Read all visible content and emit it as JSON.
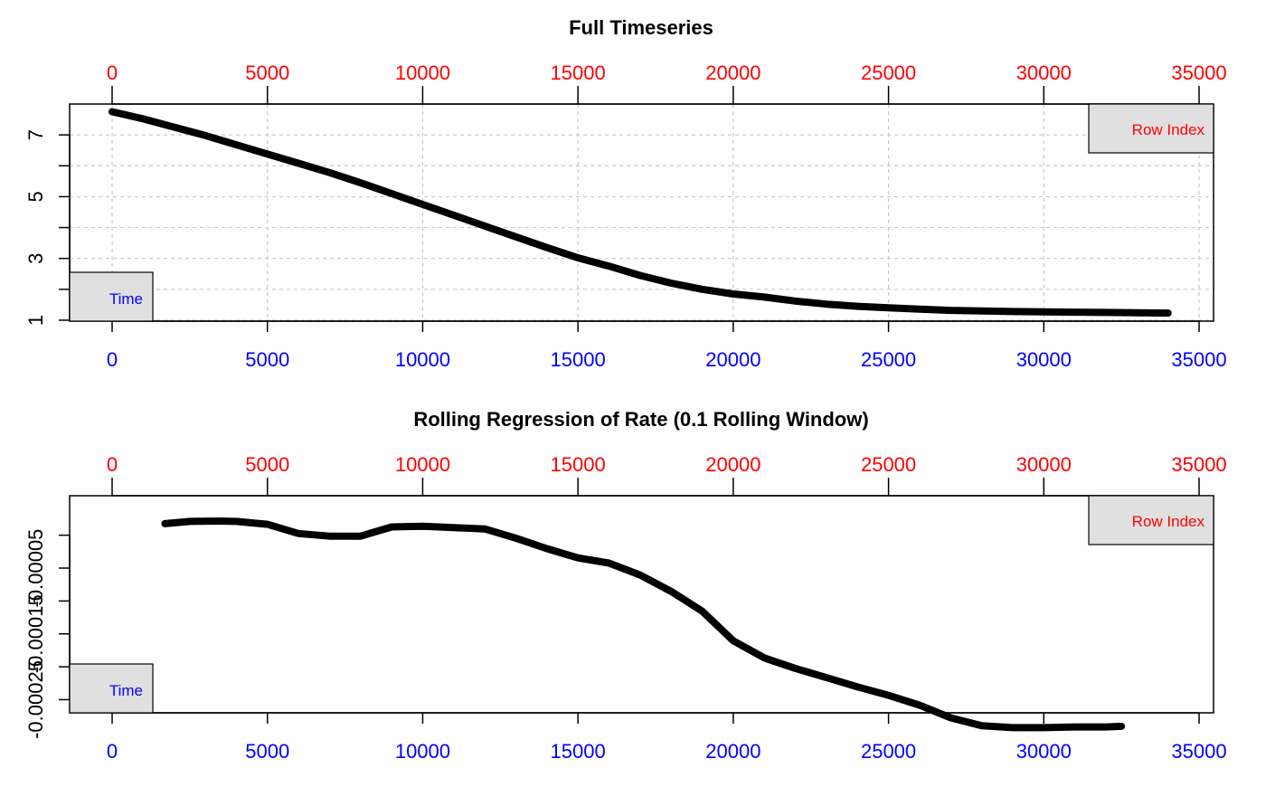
{
  "colors": {
    "series": "#000000",
    "top_axis": "#ff0000",
    "bottom_axis": "#0000ff",
    "left_axis": "#000000",
    "grid": "#c8c8c8",
    "legend_fill": "#e0e0e0"
  },
  "chart_data": [
    {
      "type": "line",
      "title": "Full Timeseries",
      "top_axis": {
        "label": "Row Index",
        "ticks": [
          "0",
          "5000",
          "10000",
          "15000",
          "20000",
          "25000",
          "30000",
          "35000"
        ],
        "range": [
          0,
          35000
        ]
      },
      "bottom_axis": {
        "label": "Time",
        "ticks": [
          "0",
          "5000",
          "10000",
          "15000",
          "20000",
          "25000",
          "30000",
          "35000"
        ],
        "range": [
          0,
          35000
        ]
      },
      "y_axis": {
        "ticks": [
          1,
          2,
          3,
          4,
          5,
          6,
          7
        ],
        "tick_labels": [
          "1",
          "",
          "3",
          "",
          "5",
          "",
          "7"
        ],
        "ylim": [
          0.97,
          8.0
        ]
      },
      "grid": true,
      "legend_top_right": "Row Index",
      "legend_bottom_left": "Time",
      "series": [
        {
          "x": [
            0,
            1000,
            2000,
            3000,
            4000,
            5000,
            6000,
            7000,
            8000,
            9000,
            10000,
            11000,
            12000,
            13000,
            14000,
            15000,
            16000,
            17000,
            18000,
            19000,
            20000,
            21000,
            22000,
            23000,
            24000,
            25000,
            26000,
            27000,
            28000,
            29000,
            30000,
            31000,
            32000,
            33000,
            34000
          ],
          "y": [
            7.75,
            7.52,
            7.25,
            6.98,
            6.68,
            6.38,
            6.08,
            5.78,
            5.45,
            5.1,
            4.75,
            4.4,
            4.05,
            3.7,
            3.35,
            3.02,
            2.75,
            2.45,
            2.2,
            2.0,
            1.85,
            1.75,
            1.62,
            1.52,
            1.45,
            1.4,
            1.36,
            1.32,
            1.3,
            1.28,
            1.27,
            1.26,
            1.25,
            1.24,
            1.23
          ]
        }
      ]
    },
    {
      "type": "line",
      "title": "Rolling Regression of Rate (0.1 Rolling Window)",
      "top_axis": {
        "label": "Row Index",
        "ticks": [
          "0",
          "5000",
          "10000",
          "15000",
          "20000",
          "25000",
          "30000",
          "35000"
        ],
        "range": [
          0,
          35000
        ]
      },
      "bottom_axis": {
        "label": "Time",
        "ticks": [
          "0",
          "5000",
          "10000",
          "15000",
          "20000",
          "25000",
          "30000",
          "35000"
        ],
        "range": [
          0,
          35000
        ]
      },
      "y_axis": {
        "ticks": [
          -0.00025,
          -0.0002,
          -0.00015,
          -0.0001,
          -5e-05,
          0.0
        ],
        "tick_labels": [
          "-0.00025",
          "",
          "-0.00015",
          "",
          "-0.00005",
          ""
        ],
        "ylim": [
          -0.00027,
          6e-05
        ]
      },
      "grid": false,
      "legend_top_right": "Row Index",
      "legend_bottom_left": "Time",
      "series": [
        {
          "x": [
            1700,
            2500,
            3500,
            4000,
            5000,
            6000,
            7000,
            8000,
            9000,
            10000,
            11000,
            12000,
            13000,
            14000,
            15000,
            16000,
            17000,
            18000,
            19000,
            20000,
            21000,
            22000,
            23000,
            24000,
            25000,
            26000,
            27000,
            28000,
            29000,
            30000,
            31000,
            32000,
            32500
          ],
          "y": [
            1.75e-05,
            2.1e-05,
            2.15e-05,
            2.1e-05,
            1.65e-05,
            2.5e-06,
            -1.5e-06,
            -1.5e-06,
            1.25e-05,
            1.35e-05,
            1.15e-05,
            9.5e-06,
            -4.5e-06,
            -2.05e-05,
            -3.45e-05,
            -4.25e-05,
            -6.05e-05,
            -8.55e-05,
            -0.0001155,
            -0.0001605,
            -0.0001865,
            -0.0002025,
            -0.0002165,
            -0.0002305,
            -0.0002435,
            -0.0002585,
            -0.0002775,
            -0.0002895,
            -0.0002925,
            -0.0002925,
            -0.0002915,
            -0.0002915,
            -0.0002905
          ]
        }
      ]
    }
  ]
}
